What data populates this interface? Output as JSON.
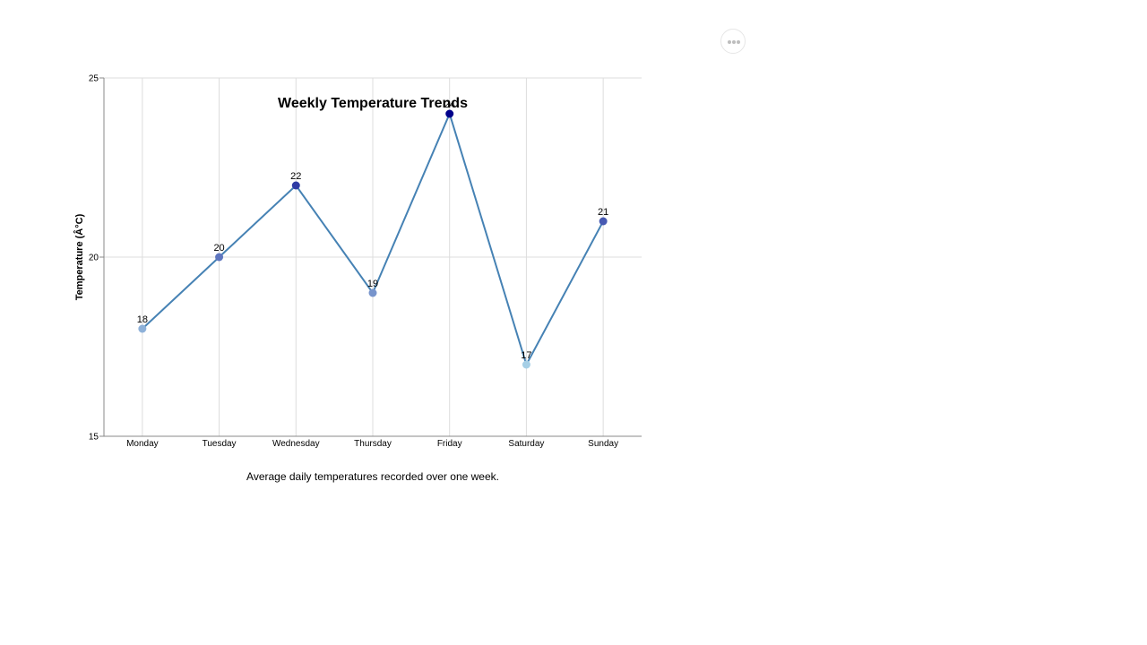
{
  "menu": {
    "more_icon": "more-horizontal-icon"
  },
  "chart_data": {
    "type": "line",
    "title": "Weekly Temperature Trends",
    "caption": "Average daily temperatures recorded over one week.",
    "xlabel": "",
    "ylabel": "Temperature (Â°C)",
    "categories": [
      "Monday",
      "Tuesday",
      "Wednesday",
      "Thursday",
      "Friday",
      "Saturday",
      "Sunday"
    ],
    "values": [
      18,
      20,
      22,
      19,
      24,
      17,
      21
    ],
    "ylim": [
      15,
      25
    ],
    "yticks": [
      15,
      20,
      25
    ],
    "grid": true,
    "data_labels": true,
    "line_color": "#4682b4",
    "point_color_low": "#a6cfe6",
    "point_color_high": "#00008b"
  }
}
